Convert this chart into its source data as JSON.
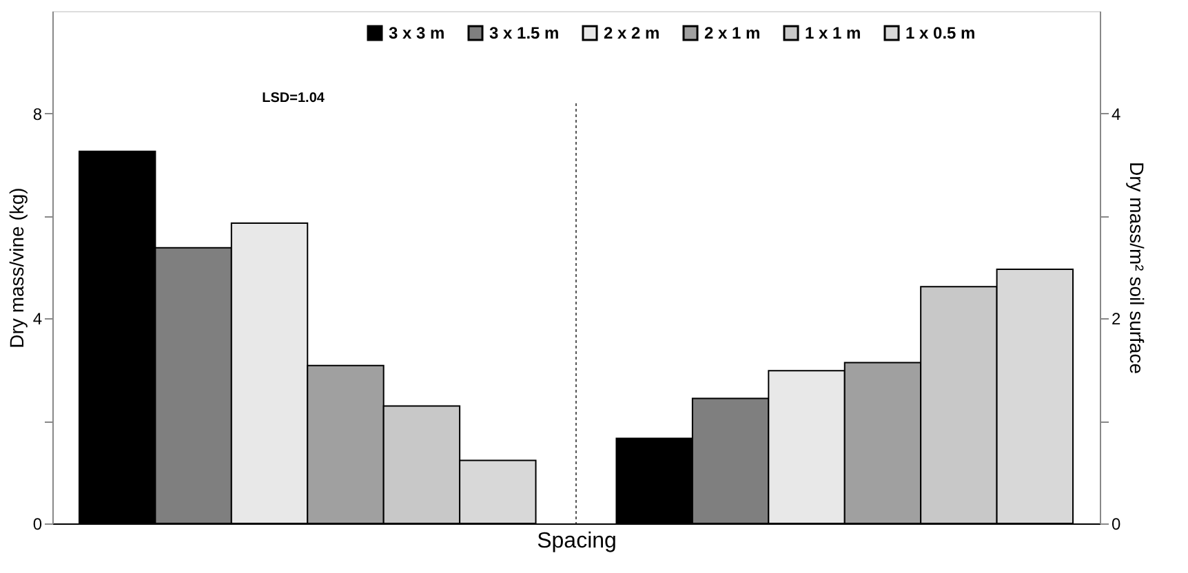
{
  "chart_data": {
    "type": "bar",
    "xlabel": "Spacing",
    "ylabel": "Dry mass/vine (kg)",
    "y2label": "Dry mass/m² soil surface",
    "categories": [
      null,
      null
    ],
    "series": [
      {
        "name": "3 x 3 m",
        "color": "#000000",
        "values": [
          7.26,
          null
        ]
      },
      {
        "name": "3 x 1.5 m",
        "color": "#7f7f7f",
        "values": [
          5.38,
          null
        ]
      },
      {
        "name": "2 x 2 m",
        "color": "#e8e8e8",
        "values": [
          5.86,
          null
        ]
      },
      {
        "name": "2 x 1 m",
        "color": "#a0a0a0",
        "values": [
          3.08,
          null
        ]
      },
      {
        "name": "1 x 1 m",
        "color": "#c8c8c8",
        "values": [
          2.29,
          null
        ]
      },
      {
        "name": "1 x 0.5 m",
        "color": "#d8d8d8",
        "values": [
          1.23,
          null
        ]
      },
      {
        "color": "#000000",
        "values": [
          null,
          0.83
        ],
        "axis": "y2"
      },
      {
        "color": "#7f7f7f",
        "values": [
          null,
          1.22
        ],
        "axis": "y2"
      },
      {
        "color": "#e8e8e8",
        "values": [
          null,
          1.49
        ],
        "axis": "y2"
      },
      {
        "color": "#a0a0a0",
        "values": [
          null,
          1.57
        ],
        "axis": "y2"
      },
      {
        "color": "#c8c8c8",
        "values": [
          null,
          2.31
        ],
        "axis": "y2"
      },
      {
        "color": "#d8d8d8",
        "values": [
          null,
          2.48
        ],
        "axis": "y2"
      }
    ],
    "ylim": [
      0,
      10
    ],
    "yticks": [
      0,
      {
        "value": 2,
        "label": null
      },
      4,
      {
        "value": 6,
        "label": null
      },
      8
    ],
    "y2lim": [
      0,
      5
    ],
    "y2ticks": [
      0,
      {
        "value": 1,
        "label": null
      },
      2,
      {
        "value": 3,
        "label": null
      },
      4
    ],
    "annotations": [
      "LSD=1.04"
    ],
    "legend": "top",
    "grid": false
  }
}
